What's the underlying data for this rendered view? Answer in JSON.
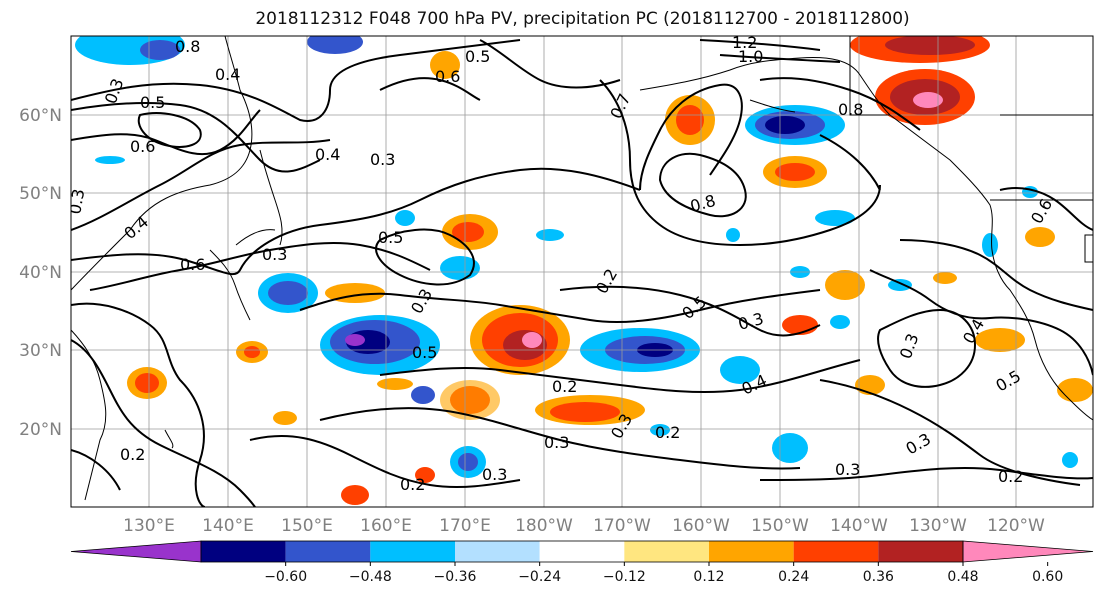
{
  "title": "2018112312 F048 700 hPa PV, precipitation PC (2018112700 - 2018112800)",
  "longitude_labels": [
    "130°E",
    "140°E",
    "150°E",
    "160°E",
    "170°E",
    "180°W",
    "170°W",
    "160°W",
    "150°W",
    "140°W",
    "130°W",
    "120°W"
  ],
  "latitude_labels": [
    "60°N",
    "50°N",
    "40°N",
    "30°N",
    "20°N"
  ],
  "colorbar": {
    "colors": [
      "#9933cc",
      "#000080",
      "#3355cc",
      "#00bfff",
      "#b3e0ff",
      "#ffffff",
      "#ffe680",
      "#ffa500",
      "#ff4000",
      "#b22222",
      "#ff88bb"
    ],
    "tick_labels": [
      "−0.60",
      "−0.48",
      "−0.36",
      "−0.24",
      "−0.12",
      "0.12",
      "0.24",
      "0.36",
      "0.48",
      "0.60"
    ]
  },
  "contour_labels": [
    "0.8",
    "0.4",
    "0.3",
    "0.5",
    "0.6",
    "0.3",
    "0.5",
    "0.6",
    "0.4",
    "0.3",
    "0.2",
    "0.3",
    "0.5",
    "0.3",
    "0.4",
    "0.5",
    "0.2",
    "0.3",
    "0.2",
    "0.3",
    "0.2",
    "0.4",
    "0.3",
    "0.5",
    "0.3",
    "0.8",
    "0.7",
    "1.0",
    "1.2",
    "0.8",
    "0.6",
    "0.6",
    "0.3",
    "0.2",
    "0.3",
    "0.5",
    "0.4",
    "0.2",
    "0.3"
  ]
}
